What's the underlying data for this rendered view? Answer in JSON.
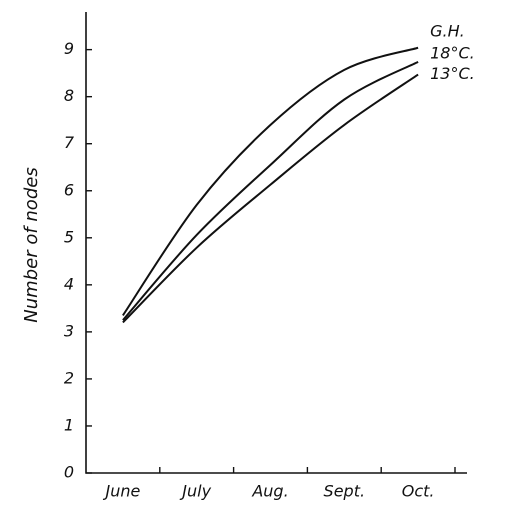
{
  "chart_data": {
    "type": "line",
    "y_label": "Number of nodes",
    "categories": [
      "June",
      "July",
      "Aug.",
      "Sept.",
      "Oct."
    ],
    "series": [
      {
        "name": "G.H.",
        "color": "#111111",
        "values": [
          3.35,
          5.7,
          7.4,
          8.57,
          9.04
        ]
      },
      {
        "name": "18°C.",
        "color": "#111111",
        "values": [
          3.25,
          5.06,
          6.55,
          7.94,
          8.74
        ]
      },
      {
        "name": "13°C.",
        "color": "#111111",
        "values": [
          3.2,
          4.79,
          6.13,
          7.4,
          8.47
        ]
      }
    ],
    "ylim": [
      0,
      9.8
    ],
    "yticks": [
      0,
      1,
      2,
      3,
      4,
      5,
      6,
      7,
      8,
      9
    ],
    "grid": false
  }
}
